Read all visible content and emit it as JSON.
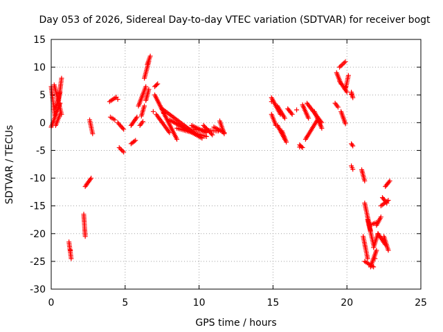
{
  "chart_data": {
    "type": "scatter",
    "title": "Day 053 of 2026, Sidereal Day-to-day VTEC variation (SDTVAR) for receiver bogt",
    "xlabel": "GPS time / hours",
    "ylabel": "SDTVAR / TECUs",
    "xlim": [
      0,
      25
    ],
    "ylim": [
      -30,
      15
    ],
    "xticks": [
      "0",
      "5",
      "10",
      "15",
      "20",
      "25"
    ],
    "yticks": [
      "15",
      "10",
      "5",
      "0",
      "-5",
      "-10",
      "-15",
      "-20",
      "-25",
      "-30"
    ],
    "grid": true,
    "marker": "+",
    "color": "#ff0000",
    "segments": [
      {
        "x0": 0.0,
        "x1": 0.25,
        "y0": 6.5,
        "y1": 1.0
      },
      {
        "x0": 0.0,
        "x1": 0.6,
        "y0": -0.8,
        "y1": 3.5
      },
      {
        "x0": 0.2,
        "x1": 0.7,
        "y0": 6.8,
        "y1": 1.5
      },
      {
        "x0": 0.3,
        "x1": 0.6,
        "y0": 2.5,
        "y1": 5.5
      },
      {
        "x0": 0.5,
        "x1": 0.7,
        "y0": 4.0,
        "y1": 8.0
      },
      {
        "x0": 0.3,
        "x1": 0.6,
        "y0": -0.5,
        "y1": 1.5
      },
      {
        "x0": 1.2,
        "x1": 1.35,
        "y0": -21.5,
        "y1": -24.5
      },
      {
        "x0": 2.2,
        "x1": 2.3,
        "y0": -16.5,
        "y1": -20.5
      },
      {
        "x0": 2.3,
        "x1": 2.7,
        "y0": -11.5,
        "y1": -10.0
      },
      {
        "x0": 2.6,
        "x1": 2.8,
        "y0": 0.5,
        "y1": -2.0
      },
      {
        "x0": 3.95,
        "x1": 4.4,
        "y0": 3.8,
        "y1": 4.6
      },
      {
        "x0": 4.0,
        "x1": 4.3,
        "y0": 1.0,
        "y1": 0.5
      },
      {
        "x0": 4.5,
        "x1": 4.9,
        "y0": 0.0,
        "y1": -1.2
      },
      {
        "x0": 4.6,
        "x1": 4.9,
        "y0": -4.5,
        "y1": -5.3
      },
      {
        "x0": 5.4,
        "x1": 5.7,
        "y0": -3.8,
        "y1": -3.2
      },
      {
        "x0": 5.4,
        "x1": 5.8,
        "y0": -0.5,
        "y1": 1.0
      },
      {
        "x0": 6.0,
        "x1": 6.2,
        "y0": -0.5,
        "y1": 0.2
      },
      {
        "x0": 5.9,
        "x1": 6.4,
        "y0": 3.0,
        "y1": 6.5
      },
      {
        "x0": 6.1,
        "x1": 6.3,
        "y0": 1.2,
        "y1": 3.0
      },
      {
        "x0": 6.3,
        "x1": 6.6,
        "y0": 8.0,
        "y1": 11.0
      },
      {
        "x0": 6.5,
        "x1": 6.7,
        "y0": 10.5,
        "y1": 12.0
      },
      {
        "x0": 6.4,
        "x1": 6.6,
        "y0": 4.0,
        "y1": 6.0
      },
      {
        "x0": 7.0,
        "x1": 7.2,
        "y0": 6.5,
        "y1": 7.0
      },
      {
        "x0": 7.0,
        "x1": 8.5,
        "y0": 5.0,
        "y1": -3.0
      },
      {
        "x0": 7.1,
        "x1": 8.0,
        "y0": 1.5,
        "y1": -1.8
      },
      {
        "x0": 7.5,
        "x1": 9.5,
        "y0": 2.5,
        "y1": -1.5
      },
      {
        "x0": 8.0,
        "x1": 10.2,
        "y0": 0.5,
        "y1": -2.8
      },
      {
        "x0": 8.5,
        "x1": 10.5,
        "y0": -1.0,
        "y1": -2.5
      },
      {
        "x0": 9.0,
        "x1": 11.3,
        "y0": -1.2,
        "y1": -1.5
      },
      {
        "x0": 9.5,
        "x1": 10.5,
        "y0": -0.5,
        "y1": -1.8
      },
      {
        "x0": 10.3,
        "x1": 10.9,
        "y0": -0.5,
        "y1": -2.2
      },
      {
        "x0": 11.0,
        "x1": 11.7,
        "y0": -0.8,
        "y1": -1.8
      },
      {
        "x0": 11.4,
        "x1": 11.7,
        "y0": 0.3,
        "y1": -2.0
      },
      {
        "x0": 14.9,
        "x1": 15.5,
        "y0": 4.5,
        "y1": 1.5
      },
      {
        "x0": 15.3,
        "x1": 15.8,
        "y0": 3.0,
        "y1": 0.8
      },
      {
        "x0": 14.9,
        "x1": 15.2,
        "y0": 1.5,
        "y1": -0.5
      },
      {
        "x0": 15.3,
        "x1": 15.8,
        "y0": -0.5,
        "y1": -3.0
      },
      {
        "x0": 15.6,
        "x1": 15.9,
        "y0": -1.5,
        "y1": -3.5
      },
      {
        "x0": 16.0,
        "x1": 16.3,
        "y0": 2.5,
        "y1": 1.5
      },
      {
        "x0": 16.8,
        "x1": 17.0,
        "y0": -4.0,
        "y1": -4.5
      },
      {
        "x0": 17.0,
        "x1": 17.4,
        "y0": 3.2,
        "y1": 0.8
      },
      {
        "x0": 17.2,
        "x1": 18.0,
        "y0": -3.0,
        "y1": 0.5
      },
      {
        "x0": 17.3,
        "x1": 18.3,
        "y0": 3.5,
        "y1": 0.0
      },
      {
        "x0": 17.8,
        "x1": 18.3,
        "y0": 2.0,
        "y1": -1.0
      },
      {
        "x0": 19.2,
        "x1": 19.4,
        "y0": 3.5,
        "y1": 2.8
      },
      {
        "x0": 19.3,
        "x1": 19.6,
        "y0": 9.0,
        "y1": 7.0
      },
      {
        "x0": 19.5,
        "x1": 19.9,
        "y0": 10.0,
        "y1": 11.0
      },
      {
        "x0": 19.5,
        "x1": 20.0,
        "y0": 7.5,
        "y1": 5.5
      },
      {
        "x0": 19.6,
        "x1": 19.9,
        "y0": 2.0,
        "y1": -0.2
      },
      {
        "x0": 19.9,
        "x1": 20.1,
        "y0": 6.0,
        "y1": 8.5
      },
      {
        "x0": 20.3,
        "x1": 20.4,
        "y0": 5.5,
        "y1": 4.5
      },
      {
        "x0": 20.3,
        "x1": 20.4,
        "y0": -3.8,
        "y1": -4.2
      },
      {
        "x0": 20.3,
        "x1": 20.4,
        "y0": -7.8,
        "y1": -8.4
      },
      {
        "x0": 21.0,
        "x1": 21.2,
        "y0": -8.5,
        "y1": -10.5
      },
      {
        "x0": 21.2,
        "x1": 21.6,
        "y0": -14.5,
        "y1": -19.5
      },
      {
        "x0": 21.4,
        "x1": 21.8,
        "y0": -17.5,
        "y1": -22.0
      },
      {
        "x0": 21.5,
        "x1": 22.0,
        "y0": -18.5,
        "y1": -18.0
      },
      {
        "x0": 21.1,
        "x1": 21.4,
        "y0": -20.5,
        "y1": -24.5
      },
      {
        "x0": 21.2,
        "x1": 21.8,
        "y0": -25.0,
        "y1": -26.0
      },
      {
        "x0": 21.6,
        "x1": 22.0,
        "y0": -26.0,
        "y1": -23.0
      },
      {
        "x0": 21.8,
        "x1": 22.1,
        "y0": -22.5,
        "y1": -20.0
      },
      {
        "x0": 22.0,
        "x1": 22.3,
        "y0": -18.5,
        "y1": -17.0
      },
      {
        "x0": 22.1,
        "x1": 22.6,
        "y0": -20.0,
        "y1": -22.0
      },
      {
        "x0": 22.5,
        "x1": 22.8,
        "y0": -20.5,
        "y1": -23.0
      },
      {
        "x0": 22.3,
        "x1": 22.8,
        "y0": -15.0,
        "y1": -14.0
      },
      {
        "x0": 22.6,
        "x1": 22.9,
        "y0": -11.5,
        "y1": -10.5
      },
      {
        "x0": 22.4,
        "x1": 22.7,
        "y0": -13.5,
        "y1": -14.5
      }
    ],
    "isolated_points": [
      {
        "x": 1.3,
        "y": -23.0
      },
      {
        "x": 4.5,
        "y": 4.2
      },
      {
        "x": 6.9,
        "y": 2.0
      },
      {
        "x": 7.6,
        "y": 1.7
      },
      {
        "x": 14.9,
        "y": 3.8
      },
      {
        "x": 16.6,
        "y": 2.3
      },
      {
        "x": 16.8,
        "y": -4.4
      },
      {
        "x": 19.9,
        "y": 6.4
      },
      {
        "x": 20.3,
        "y": 5.1
      },
      {
        "x": 21.9,
        "y": -24.5
      }
    ]
  }
}
